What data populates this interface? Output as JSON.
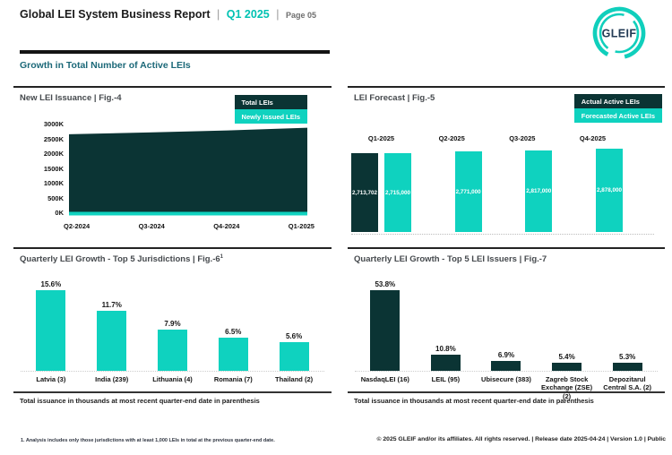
{
  "header": {
    "title": "Global LEI System Business Report",
    "separator": "|",
    "quarter": "Q1 2025",
    "page": "Page 05"
  },
  "logo": {
    "text": "GLEIF"
  },
  "section": {
    "title": "Growth in Total Number of Active LEIs"
  },
  "colors": {
    "teal": "#0fd2bf",
    "dark_teal": "#0b3434",
    "header_accent": "#00c2b2",
    "section_title": "#1b6878"
  },
  "chart_data": [
    {
      "id": "fig4",
      "type": "area",
      "title": "New LEI Issuance | Fig.-4",
      "legend": [
        "Total LEIs",
        "Newly Issued LEIs"
      ],
      "x": [
        "Q2-2024",
        "Q3-2024",
        "Q4-2024",
        "Q1-2025"
      ],
      "series": [
        {
          "name": "Total LEIs",
          "values": [
            2640000,
            2700000,
            2770000,
            2860000
          ]
        },
        {
          "name": "Newly Issued LEIs",
          "values": [
            65000,
            65000,
            65000,
            65000
          ]
        }
      ],
      "ytick_labels": [
        "3000K",
        "2500K",
        "2000K",
        "1500K",
        "1000K",
        "500K",
        "0K"
      ],
      "ylim": [
        0,
        3000000
      ],
      "grid": false,
      "legend_position": "top-right"
    },
    {
      "id": "fig5",
      "type": "bar",
      "title": "LEI Forecast | Fig.-5",
      "legend": [
        "Actual Active LEIs",
        "Forecasted Active LEIs"
      ],
      "groups": [
        "Q1-2025",
        "Q2-2025",
        "Q3-2025",
        "Q4-2025"
      ],
      "series": [
        {
          "name": "Actual Active LEIs",
          "values": [
            2713702,
            null,
            null,
            null
          ],
          "labels": [
            "2,713,702",
            "",
            "",
            ""
          ]
        },
        {
          "name": "Forecasted Active LEIs",
          "values": [
            2715000,
            2771000,
            2817000,
            2878000
          ],
          "labels": [
            "2,715,000",
            "2,771,000",
            "2,817,000",
            "2,878,000"
          ]
        }
      ],
      "ylim": [
        0,
        2900000
      ],
      "grid": false,
      "legend_position": "top-right"
    },
    {
      "id": "fig6",
      "type": "bar",
      "title": "Quarterly LEI Growth - Top 5 Jurisdictions | Fig.-6",
      "title_sup": "1",
      "categories": [
        "Latvia (3)",
        "India (239)",
        "Lithuania (4)",
        "Romania (7)",
        "Thailand (2)"
      ],
      "values": [
        15.6,
        11.7,
        7.9,
        6.5,
        5.6
      ],
      "value_labels": [
        "15.6%",
        "11.7%",
        "7.9%",
        "6.5%",
        "5.6%"
      ],
      "note": "Total issuance in thousands at most recent quarter-end date in parenthesis"
    },
    {
      "id": "fig7",
      "type": "bar",
      "title": "Quarterly LEI Growth - Top 5 LEI Issuers | Fig.-7",
      "categories": [
        "NasdaqLEI (16)",
        "LEIL (95)",
        "Ubisecure (383)",
        "Zagreb Stock Exchange (ZSE) (2)",
        "Depozitarul Central S.A. (2)"
      ],
      "values": [
        53.8,
        10.8,
        6.9,
        5.4,
        5.3
      ],
      "value_labels": [
        "53.8%",
        "10.8%",
        "6.9%",
        "5.4%",
        "5.3%"
      ],
      "note": "Total issuance in thousands at most recent quarter-end date in parenthesis"
    }
  ],
  "footer": {
    "footnote": "1. Analysis includes only those jurisdictions with at least 1,000 LEIs in total at the previous quarter-end date.",
    "copyright": "© 2025 GLEIF and/or its affiliates. All rights reserved. | Release date 2025-04-24 | Version 1.0 | Public"
  }
}
